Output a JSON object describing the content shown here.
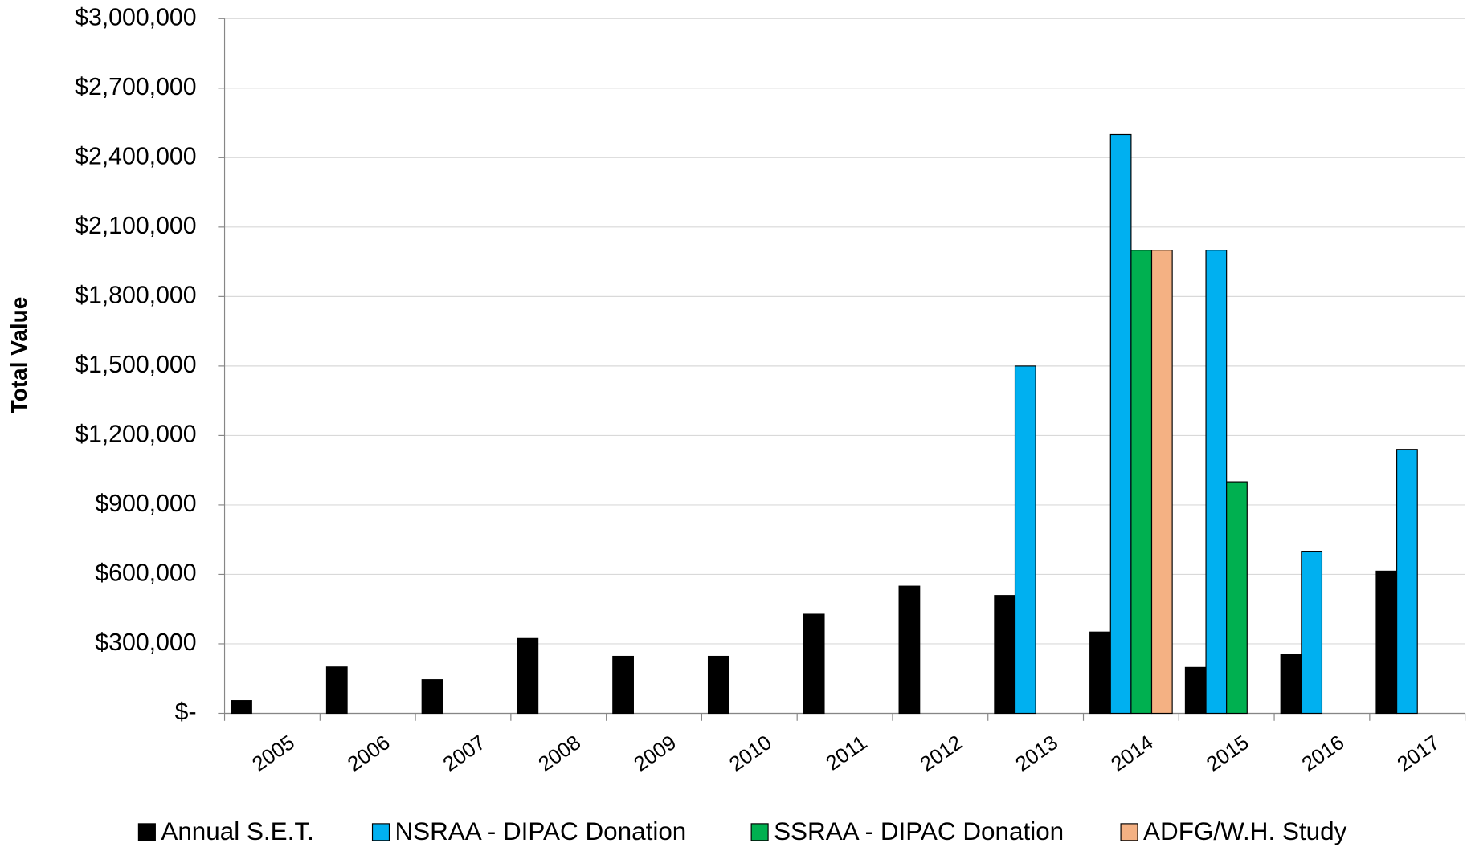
{
  "chart_data": {
    "type": "bar",
    "y_label": "Total Value",
    "categories": [
      "2005",
      "2006",
      "2007",
      "2008",
      "2009",
      "2010",
      "2011",
      "2012",
      "2013",
      "2014",
      "2015",
      "2016",
      "2017"
    ],
    "series": [
      {
        "name": "Annual S.E.T.",
        "color": "#000000",
        "values": [
          55000,
          200000,
          145000,
          323000,
          246000,
          246000,
          428000,
          549000,
          509000,
          351000,
          198000,
          254000,
          614000
        ]
      },
      {
        "name": "NSRAA - DIPAC Donation",
        "color": "#00b0f0",
        "values": [
          null,
          null,
          null,
          null,
          null,
          null,
          null,
          null,
          1500000,
          2500000,
          2000000,
          700000,
          1140000
        ]
      },
      {
        "name": "SSRAA - DIPAC Donation",
        "color": "#00b050",
        "values": [
          null,
          null,
          null,
          null,
          null,
          null,
          null,
          null,
          null,
          2000000,
          1000000,
          null,
          null
        ]
      },
      {
        "name": "ADFG/W.H. Study",
        "color": "#f4b183",
        "values": [
          null,
          null,
          null,
          null,
          null,
          null,
          null,
          null,
          null,
          2000000,
          null,
          null,
          null
        ]
      }
    ],
    "ylim": [
      0,
      3000000
    ],
    "yticks": [
      {
        "value": 0,
        "label": "$-"
      },
      {
        "value": 300000,
        "label": "$300,000"
      },
      {
        "value": 600000,
        "label": "$600,000"
      },
      {
        "value": 900000,
        "label": "$900,000"
      },
      {
        "value": 1200000,
        "label": "$1,200,000"
      },
      {
        "value": 1500000,
        "label": "$1,500,000"
      },
      {
        "value": 1800000,
        "label": "$1,800,000"
      },
      {
        "value": 2100000,
        "label": "$2,100,000"
      },
      {
        "value": 2400000,
        "label": "$2,400,000"
      },
      {
        "value": 2700000,
        "label": "$2,700,000"
      },
      {
        "value": 3000000,
        "label": "$3,000,000"
      }
    ],
    "grid": true,
    "legend": "bottom"
  }
}
